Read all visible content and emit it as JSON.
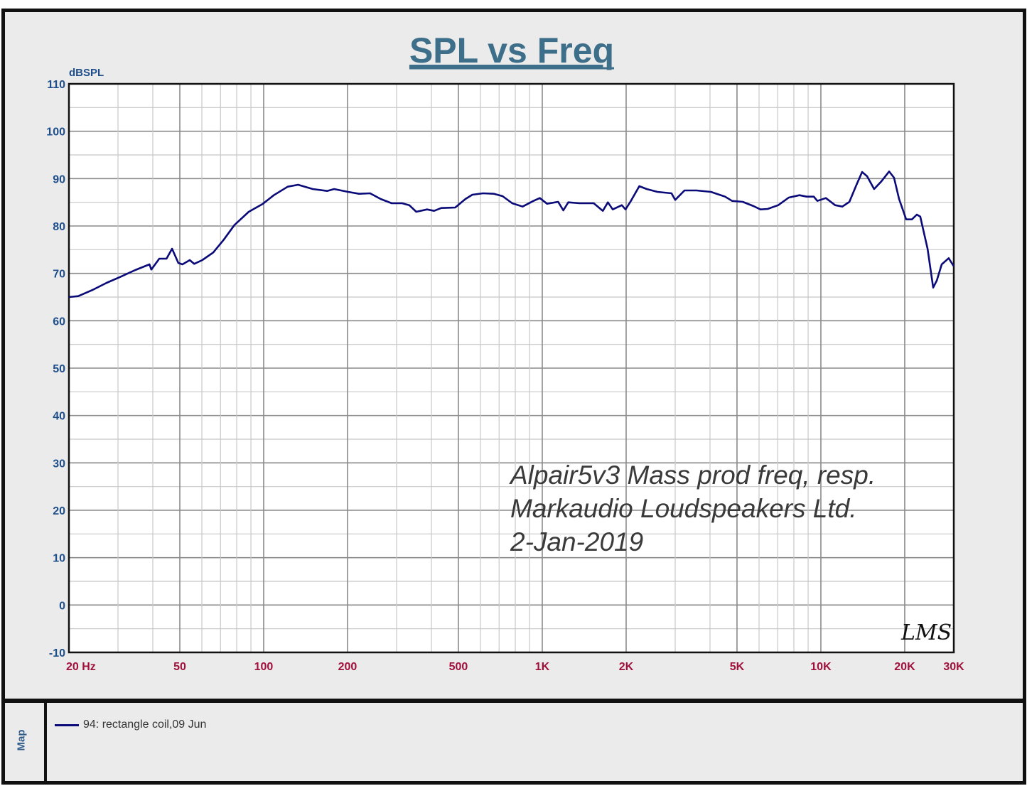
{
  "chart_data": {
    "type": "line",
    "title": "SPL vs Freq",
    "ylabel": "dBSPL",
    "xlabel": "",
    "xscale": "log",
    "xlim": [
      20,
      30000
    ],
    "ylim": [
      -10,
      110
    ],
    "grid": true,
    "y_ticks": [
      "110",
      "100",
      "90",
      "80",
      "70",
      "60",
      "50",
      "40",
      "30",
      "20",
      "10",
      "0",
      "-10"
    ],
    "x_ticks": [
      {
        "value": 20,
        "label": "20  Hz"
      },
      {
        "value": 50,
        "label": "50"
      },
      {
        "value": 100,
        "label": "100"
      },
      {
        "value": 200,
        "label": "200"
      },
      {
        "value": 500,
        "label": "500"
      },
      {
        "value": 1000,
        "label": "1K"
      },
      {
        "value": 2000,
        "label": "2K"
      },
      {
        "value": 5000,
        "label": "5K"
      },
      {
        "value": 10000,
        "label": "10K"
      },
      {
        "value": 20000,
        "label": "20K"
      },
      {
        "value": 30000,
        "label": "30K"
      }
    ],
    "annotation": [
      "Alpair5v3  Mass prod freq, resp.",
      "Markaudio Loudspeakers Ltd.",
      "  2-Jan-2019"
    ],
    "logo": "LMS",
    "colors": {
      "line": "#0a0a78",
      "title": "#3d6e8a",
      "ytick": "#1f4f8a",
      "xtick": "#a0103a",
      "background": "#ebebeb"
    },
    "series": [
      {
        "name": "94: rectangle coil,09  Jun",
        "x": [
          20,
          21.6,
          24.3,
          27.3,
          30.7,
          34.6,
          38.9,
          39.5,
          42.2,
          44.8,
          46.9,
          49.4,
          51.1,
          54.3,
          56.3,
          60.2,
          65.9,
          71.9,
          78.5,
          88.4,
          99.4,
          108.7,
          122,
          133,
          150,
          169,
          179,
          201,
          220,
          241,
          263,
          288,
          314,
          333,
          353,
          386,
          409,
          434,
          487,
          530,
          561,
          613,
          671,
          720,
          780,
          850,
          930,
          980,
          1040,
          1140,
          1190,
          1240,
          1360,
          1530,
          1650,
          1720,
          1790,
          1930,
          1990,
          2080,
          2230,
          2370,
          2590,
          2910,
          3000,
          3240,
          3580,
          4030,
          4530,
          4800,
          5240,
          5730,
          6070,
          6440,
          7030,
          7670,
          8380,
          8890,
          9430,
          9710,
          10420,
          11250,
          11940,
          12660,
          13420,
          14060,
          14650,
          15530,
          16480,
          17580,
          18310,
          19090,
          20240,
          21230,
          22100,
          22740,
          24150,
          25300,
          26070,
          27150,
          28760,
          30000
        ],
        "y": [
          65,
          65.2,
          66.5,
          68,
          69.3,
          70.7,
          71.9,
          70.8,
          73.1,
          73.1,
          75.2,
          72.2,
          71.9,
          72.8,
          72.0,
          72.8,
          74.4,
          77.1,
          80.2,
          83.0,
          84.7,
          86.5,
          88.3,
          88.7,
          87.8,
          87.4,
          87.8,
          87.2,
          86.8,
          86.9,
          85.7,
          84.8,
          84.8,
          84.4,
          83.0,
          83.5,
          83.2,
          83.8,
          83.9,
          85.7,
          86.6,
          86.9,
          86.8,
          86.3,
          84.8,
          84.1,
          85.3,
          85.9,
          84.7,
          85.1,
          83.3,
          85.0,
          84.8,
          84.8,
          83.2,
          85.0,
          83.5,
          84.4,
          83.5,
          85.3,
          88.4,
          87.8,
          87.2,
          86.9,
          85.5,
          87.5,
          87.5,
          87.2,
          86.2,
          85.3,
          85.1,
          84.2,
          83.5,
          83.6,
          84.4,
          86.0,
          86.5,
          86.2,
          86.2,
          85.3,
          85.9,
          84.4,
          84.1,
          85.1,
          88.7,
          91.4,
          90.5,
          87.8,
          89.4,
          91.5,
          90.2,
          85.7,
          81.4,
          81.4,
          82.4,
          82.0,
          75.2,
          67.0,
          68.5,
          71.9,
          73.2,
          71.5
        ]
      }
    ]
  },
  "map_tab": "Map"
}
